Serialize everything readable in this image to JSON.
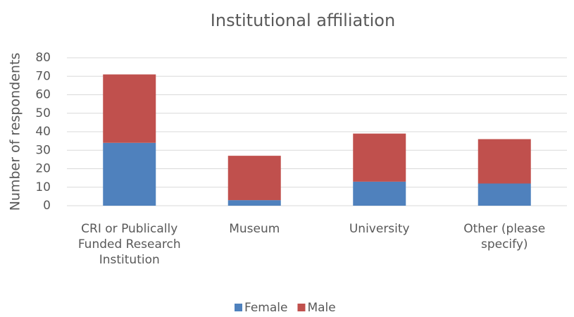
{
  "chart_data": {
    "type": "stacked_bar",
    "title": "Institutional affiliation",
    "y_label": "Number of respondents",
    "categories": [
      "CRI or Publically Funded Research Institution",
      "Museum",
      "University",
      "Other (please specify)"
    ],
    "series": [
      {
        "name": "Female",
        "color": "#4f81bd",
        "values": [
          34,
          3,
          13,
          12
        ]
      },
      {
        "name": "Male",
        "color": "#c0504d",
        "values": [
          37,
          24,
          26,
          24
        ]
      }
    ],
    "ylim": [
      0,
      80
    ],
    "yticks": [
      0,
      10,
      20,
      30,
      40,
      50,
      60,
      70,
      80
    ],
    "grid": true,
    "legend": "bottom"
  }
}
